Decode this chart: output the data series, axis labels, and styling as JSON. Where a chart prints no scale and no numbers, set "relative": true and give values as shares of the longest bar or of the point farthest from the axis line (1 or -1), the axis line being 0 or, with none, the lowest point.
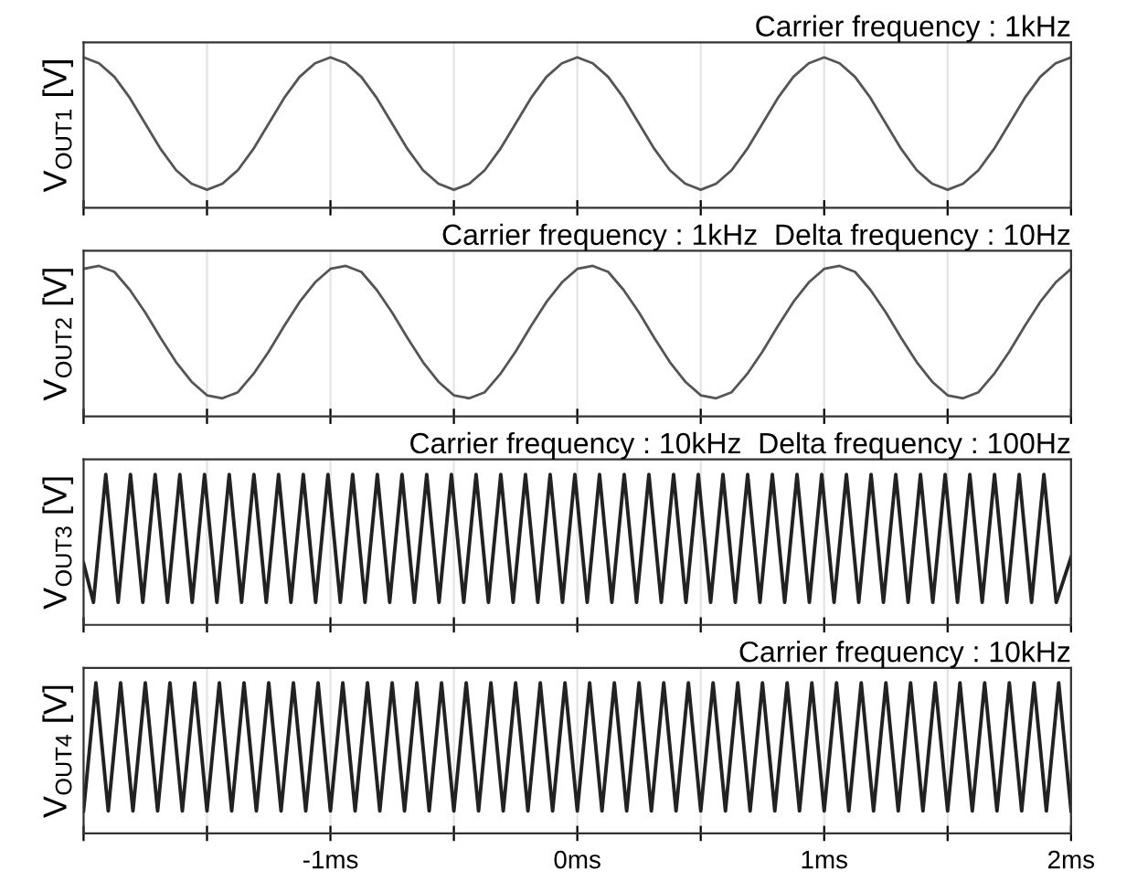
{
  "chart_data": [
    {
      "type": "line",
      "title": "Carrier frequency : 1kHz",
      "ylabel": "V$_{OUT1}$ [V]",
      "relative": true,
      "color": "#555555",
      "grid": "x",
      "tick_labels": false,
      "xlim": [
        -2,
        2
      ],
      "xticks": [
        {
          "value": -2,
          "label": null
        },
        {
          "value": -1.5,
          "label": null
        },
        {
          "value": -1,
          "label": null
        },
        {
          "value": -0.5,
          "label": null
        },
        {
          "value": 0,
          "label": null
        },
        {
          "value": 0.5,
          "label": null
        },
        {
          "value": 1,
          "label": null
        },
        {
          "value": 1.5,
          "label": null
        },
        {
          "value": 2,
          "label": null
        }
      ],
      "x": [
        -2,
        -1.9375,
        -1.875,
        -1.8125,
        -1.75,
        -1.6875,
        -1.625,
        -1.5625,
        -1.5,
        -1.4375,
        -1.375,
        -1.3125,
        -1.25,
        -1.1875,
        -1.125,
        -1.0625,
        -1,
        -0.9375,
        -0.875,
        -0.8125,
        -0.75,
        -0.6875,
        -0.625,
        -0.5625,
        -0.5,
        -0.4375,
        -0.375,
        -0.3125,
        -0.25,
        -0.1875,
        -0.125,
        -0.0625,
        0,
        0.0625,
        0.125,
        0.1875,
        0.25,
        0.3125,
        0.375,
        0.4375,
        0.5,
        0.5625,
        0.625,
        0.6875,
        0.75,
        0.8125,
        0.875,
        0.9375,
        1,
        1.0625,
        1.125,
        1.1875,
        1.25,
        1.3125,
        1.375,
        1.4375,
        1.5,
        1.5625,
        1.625,
        1.6875,
        1.75,
        1.8125,
        1.875,
        1.9375,
        2
      ],
      "values": [
        1,
        0.96,
        0.87,
        0.73,
        0.56,
        0.39,
        0.25,
        0.16,
        0.12,
        0.16,
        0.25,
        0.39,
        0.56,
        0.73,
        0.87,
        0.96,
        1,
        0.96,
        0.87,
        0.73,
        0.56,
        0.39,
        0.25,
        0.16,
        0.12,
        0.16,
        0.25,
        0.39,
        0.56,
        0.73,
        0.87,
        0.96,
        1,
        0.96,
        0.87,
        0.73,
        0.56,
        0.39,
        0.25,
        0.16,
        0.12,
        0.16,
        0.25,
        0.39,
        0.56,
        0.73,
        0.87,
        0.96,
        1,
        0.96,
        0.87,
        0.73,
        0.56,
        0.39,
        0.25,
        0.16,
        0.12,
        0.16,
        0.25,
        0.39,
        0.56,
        0.73,
        0.87,
        0.96,
        1
      ]
    },
    {
      "type": "line",
      "title": "Carrier frequency : 1kHz  Delta frequency : 10Hz",
      "ylabel": "V$_{OUT2}$ [V]",
      "relative": true,
      "color": "#555555",
      "grid": "x",
      "tick_labels": false,
      "xlim": [
        -2,
        2
      ],
      "xticks": [
        {
          "value": -2,
          "label": null
        },
        {
          "value": -1.5,
          "label": null
        },
        {
          "value": -1,
          "label": null
        },
        {
          "value": -0.5,
          "label": null
        },
        {
          "value": 0,
          "label": null
        },
        {
          "value": 0.5,
          "label": null
        },
        {
          "value": 1,
          "label": null
        },
        {
          "value": 1.5,
          "label": null
        },
        {
          "value": 2,
          "label": null
        }
      ],
      "x": [
        -2,
        -1.9375,
        -1.875,
        -1.8125,
        -1.75,
        -1.6875,
        -1.625,
        -1.5625,
        -1.5,
        -1.4375,
        -1.375,
        -1.3125,
        -1.25,
        -1.1875,
        -1.125,
        -1.0625,
        -1,
        -0.9375,
        -0.875,
        -0.8125,
        -0.75,
        -0.6875,
        -0.625,
        -0.5625,
        -0.5,
        -0.4375,
        -0.375,
        -0.3125,
        -0.25,
        -0.1875,
        -0.125,
        -0.0625,
        0,
        0.0625,
        0.125,
        0.1875,
        0.25,
        0.3125,
        0.375,
        0.4375,
        0.5,
        0.5625,
        0.625,
        0.6875,
        0.75,
        0.8125,
        0.875,
        0.9375,
        1,
        1.0625,
        1.125,
        1.1875,
        1.25,
        1.3125,
        1.375,
        1.4375,
        1.5,
        1.5625,
        1.625,
        1.6875,
        1.75,
        1.8125,
        1.875,
        1.9375,
        2
      ],
      "values": [
        0.98,
        1,
        0.96,
        0.84,
        0.69,
        0.52,
        0.36,
        0.23,
        0.14,
        0.12,
        0.16,
        0.28,
        0.43,
        0.6,
        0.76,
        0.89,
        0.98,
        1,
        0.96,
        0.84,
        0.69,
        0.52,
        0.36,
        0.23,
        0.14,
        0.12,
        0.16,
        0.28,
        0.43,
        0.6,
        0.76,
        0.89,
        0.98,
        1,
        0.96,
        0.84,
        0.69,
        0.52,
        0.36,
        0.23,
        0.14,
        0.12,
        0.16,
        0.28,
        0.43,
        0.6,
        0.76,
        0.89,
        0.98,
        1,
        0.96,
        0.84,
        0.69,
        0.52,
        0.36,
        0.23,
        0.14,
        0.12,
        0.16,
        0.28,
        0.43,
        0.6,
        0.76,
        0.89,
        0.98
      ]
    },
    {
      "type": "line",
      "title": "Carrier frequency : 10kHz  Delta frequency : 100Hz",
      "ylabel": "V$_{OUT3}$ [V]",
      "relative": true,
      "color": "#222222",
      "grid": "x",
      "tick_labels": false,
      "xlim": [
        -2,
        2
      ],
      "xticks": [
        {
          "value": -2,
          "label": null
        },
        {
          "value": -1.5,
          "label": null
        },
        {
          "value": -1,
          "label": null
        },
        {
          "value": -0.5,
          "label": null
        },
        {
          "value": 0,
          "label": null
        },
        {
          "value": 0.5,
          "label": null
        },
        {
          "value": 1,
          "label": null
        },
        {
          "value": 1.5,
          "label": null
        },
        {
          "value": 2,
          "label": null
        }
      ],
      "x": [
        -2,
        -1.96,
        -1.91,
        -1.86,
        -1.81,
        -1.76,
        -1.71,
        -1.66,
        -1.61,
        -1.56,
        -1.51,
        -1.46,
        -1.41,
        -1.36,
        -1.31,
        -1.26,
        -1.21,
        -1.16,
        -1.11,
        -1.06,
        -1.01,
        -0.96,
        -0.91,
        -0.86,
        -0.81,
        -0.76,
        -0.71,
        -0.66,
        -0.61,
        -0.56,
        -0.51,
        -0.46,
        -0.41,
        -0.36,
        -0.31,
        -0.26,
        -0.21,
        -0.16,
        -0.11,
        -0.06,
        -0.01,
        0.04,
        0.09,
        0.14,
        0.19,
        0.24,
        0.29,
        0.34,
        0.39,
        0.44,
        0.49,
        0.54,
        0.59,
        0.64,
        0.69,
        0.74,
        0.79,
        0.84,
        0.89,
        0.94,
        0.99,
        1.04,
        1.09,
        1.14,
        1.19,
        1.24,
        1.29,
        1.34,
        1.39,
        1.44,
        1.49,
        1.54,
        1.59,
        1.64,
        1.69,
        1.74,
        1.79,
        1.84,
        1.89,
        1.94,
        2
      ],
      "values": [
        0.41,
        0.15,
        1,
        0.15,
        1,
        0.15,
        1,
        0.15,
        1,
        0.15,
        1,
        0.15,
        1,
        0.15,
        1,
        0.15,
        1,
        0.15,
        1,
        0.15,
        1,
        0.15,
        1,
        0.15,
        1,
        0.15,
        1,
        0.15,
        1,
        0.15,
        1,
        0.15,
        1,
        0.15,
        1,
        0.15,
        1,
        0.15,
        1,
        0.15,
        1,
        0.15,
        1,
        0.15,
        1,
        0.15,
        1,
        0.15,
        1,
        0.15,
        1,
        0.15,
        1,
        0.15,
        1,
        0.15,
        1,
        0.15,
        1,
        0.15,
        1,
        0.15,
        1,
        0.15,
        1,
        0.15,
        1,
        0.15,
        1,
        0.15,
        1,
        0.15,
        1,
        0.15,
        1,
        0.15,
        1,
        0.15,
        1,
        0.15,
        0.45
      ]
    },
    {
      "type": "line",
      "title": "Carrier frequency : 10kHz",
      "ylabel": "V$_{OUT4}$ [V]",
      "relative": true,
      "color": "#222222",
      "grid": "x",
      "tick_labels": "x",
      "xlim": [
        -2,
        2
      ],
      "xticks": [
        {
          "value": -2,
          "label": null
        },
        {
          "value": -1.5,
          "label": null
        },
        {
          "value": -1,
          "label": "-1ms"
        },
        {
          "value": -0.5,
          "label": null
        },
        {
          "value": 0,
          "label": "0ms"
        },
        {
          "value": 0.5,
          "label": null
        },
        {
          "value": 1,
          "label": "1ms"
        },
        {
          "value": 1.5,
          "label": null
        },
        {
          "value": 2,
          "label": "2ms"
        }
      ],
      "x": [
        -2,
        -1.95,
        -1.9,
        -1.85,
        -1.8,
        -1.75,
        -1.7,
        -1.65,
        -1.6,
        -1.55,
        -1.5,
        -1.45,
        -1.4,
        -1.35,
        -1.3,
        -1.25,
        -1.2,
        -1.15,
        -1.1,
        -1.05,
        -1,
        -0.95,
        -0.9,
        -0.85,
        -0.8,
        -0.75,
        -0.7,
        -0.65,
        -0.6,
        -0.55,
        -0.5,
        -0.45,
        -0.4,
        -0.35,
        -0.3,
        -0.25,
        -0.2,
        -0.15,
        -0.1,
        -0.05,
        0,
        0.05,
        0.1,
        0.15,
        0.2,
        0.25,
        0.3,
        0.35,
        0.4,
        0.45,
        0.5,
        0.55,
        0.6,
        0.65,
        0.7,
        0.75,
        0.8,
        0.85,
        0.9,
        0.95,
        1,
        1.05,
        1.1,
        1.15,
        1.2,
        1.25,
        1.3,
        1.35,
        1.4,
        1.45,
        1.5,
        1.55,
        1.6,
        1.65,
        1.7,
        1.75,
        1.8,
        1.85,
        1.9,
        1.95,
        2
      ],
      "values": [
        0.15,
        1,
        0.15,
        1,
        0.15,
        1,
        0.15,
        1,
        0.15,
        1,
        0.15,
        1,
        0.15,
        1,
        0.15,
        1,
        0.15,
        1,
        0.15,
        1,
        0.15,
        1,
        0.15,
        1,
        0.15,
        1,
        0.15,
        1,
        0.15,
        1,
        0.15,
        1,
        0.15,
        1,
        0.15,
        1,
        0.15,
        1,
        0.15,
        1,
        0.15,
        1,
        0.15,
        1,
        0.15,
        1,
        0.15,
        1,
        0.15,
        1,
        0.15,
        1,
        0.15,
        1,
        0.15,
        1,
        0.15,
        1,
        0.15,
        1,
        0.15,
        1,
        0.15,
        1,
        0.15,
        1,
        0.15,
        1,
        0.15,
        1,
        0.15,
        1,
        0.15,
        1,
        0.15,
        1,
        0.15,
        1,
        0.15,
        1,
        0.15
      ]
    }
  ]
}
